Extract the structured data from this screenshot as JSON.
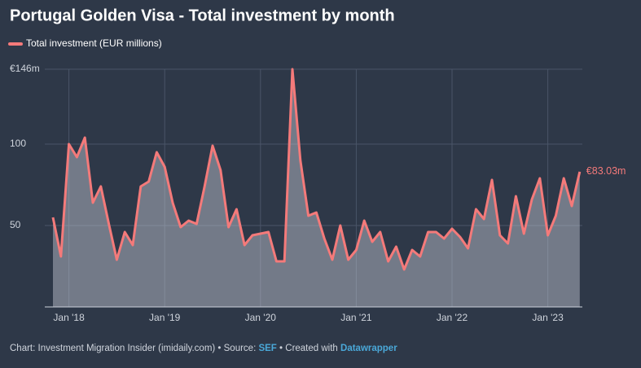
{
  "chart_data": {
    "type": "area",
    "title": "Portugal Golden Visa - Total investment by month",
    "categories": [
      null,
      null,
      "Jan '18",
      null,
      null,
      null,
      null,
      null,
      null,
      null,
      null,
      null,
      null,
      null,
      "Jan '19",
      null,
      null,
      null,
      null,
      null,
      null,
      null,
      null,
      null,
      null,
      null,
      "Jan '20",
      null,
      null,
      null,
      null,
      null,
      null,
      null,
      null,
      null,
      null,
      null,
      "Jan '21",
      null,
      null,
      null,
      null,
      null,
      null,
      null,
      null,
      null,
      null,
      null,
      "Jan '22",
      null,
      null,
      null,
      null,
      null,
      null,
      null,
      null,
      null,
      null,
      null,
      "Jan '23",
      null,
      null,
      null,
      null
    ],
    "series": [
      {
        "name": "Total investment (EUR millions)",
        "color": "#f47a7a",
        "values": [
          55,
          31,
          100,
          92,
          104,
          64,
          74,
          51,
          29,
          46,
          38,
          74,
          77,
          95,
          86,
          64,
          49,
          53,
          51,
          74,
          99,
          84,
          49,
          60,
          38,
          44,
          45,
          46,
          28,
          28,
          146,
          90,
          56,
          58,
          42,
          29,
          50,
          29,
          35,
          53,
          40,
          46,
          28,
          37,
          23,
          35,
          31,
          46,
          46,
          42,
          48,
          43,
          36,
          60,
          54,
          78,
          44,
          39,
          68,
          45,
          66,
          79,
          44,
          56,
          79,
          62,
          83.03
        ],
        "value_labels": [
          null,
          null,
          null,
          null,
          null,
          null,
          null,
          null,
          null,
          null,
          null,
          null,
          null,
          null,
          null,
          null,
          null,
          null,
          null,
          null,
          null,
          null,
          null,
          null,
          null,
          null,
          null,
          null,
          null,
          null,
          null,
          null,
          null,
          null,
          null,
          null,
          null,
          null,
          null,
          null,
          null,
          null,
          null,
          null,
          null,
          null,
          null,
          null,
          null,
          null,
          null,
          null,
          null,
          null,
          null,
          null,
          null,
          null,
          null,
          null,
          null,
          null,
          null,
          null,
          null,
          null,
          "€83.03m"
        ]
      }
    ],
    "ylim": [
      0,
      146
    ],
    "yticks": [
      {
        "value": 146,
        "label": "€146m"
      },
      100,
      50
    ],
    "grid": true,
    "footer": {
      "prefix": "Chart: Investment Migration Insider (imidaily.com) • Source: ",
      "source": "SEF",
      "middle": " • Created with ",
      "tool": "Datawrapper"
    }
  }
}
